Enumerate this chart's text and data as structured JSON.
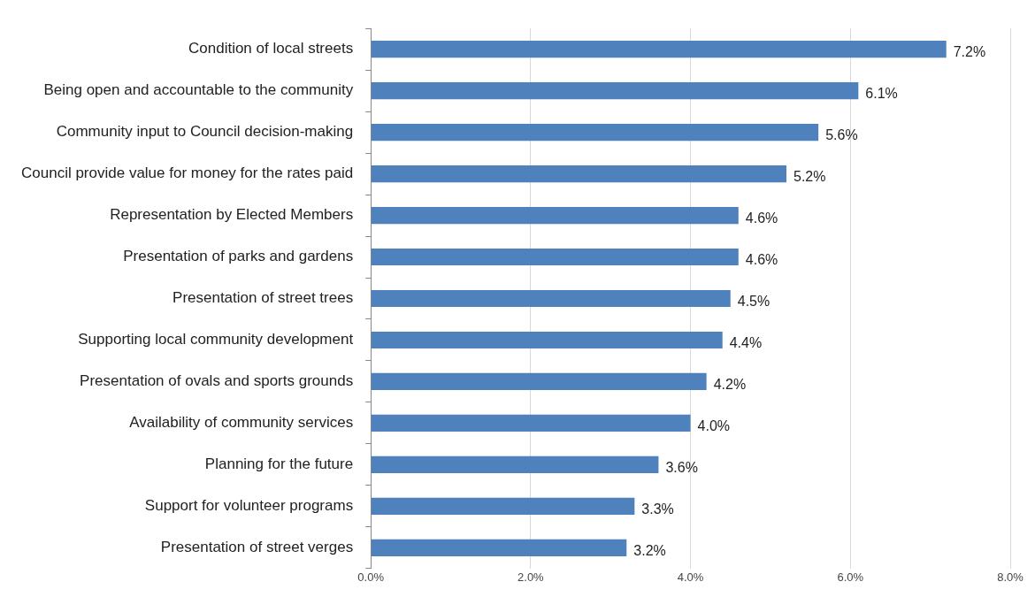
{
  "chart_data": {
    "type": "bar",
    "orientation": "horizontal",
    "categories": [
      "Condition of local streets",
      "Being open and accountable to the community",
      "Community input to Council decision-making",
      "Council provide value for money for the rates paid",
      "Representation by Elected Members",
      "Presentation of parks and gardens",
      "Presentation of street trees",
      "Supporting local community development",
      "Presentation of ovals and sports grounds",
      "Availability of community services",
      "Planning for the future",
      "Support for volunteer programs",
      "Presentation of street verges"
    ],
    "values": [
      7.2,
      6.1,
      5.6,
      5.2,
      4.6,
      4.6,
      4.5,
      4.4,
      4.2,
      4.0,
      3.6,
      3.3,
      3.2
    ],
    "value_labels": [
      "7.2%",
      "6.1%",
      "5.6%",
      "5.2%",
      "4.6%",
      "4.6%",
      "4.5%",
      "4.4%",
      "4.2%",
      "4.0%",
      "3.6%",
      "3.3%",
      "3.2%"
    ],
    "color": "#4f81bd",
    "xlim": [
      0,
      8
    ],
    "xticks": [
      {
        "value": 0,
        "label": "0.0%"
      },
      {
        "value": 2,
        "label": "2.0%"
      },
      {
        "value": 4,
        "label": "4.0%"
      },
      {
        "value": 6,
        "label": "6.0%"
      },
      {
        "value": 8,
        "label": "8.0%"
      }
    ],
    "grid": "x"
  }
}
